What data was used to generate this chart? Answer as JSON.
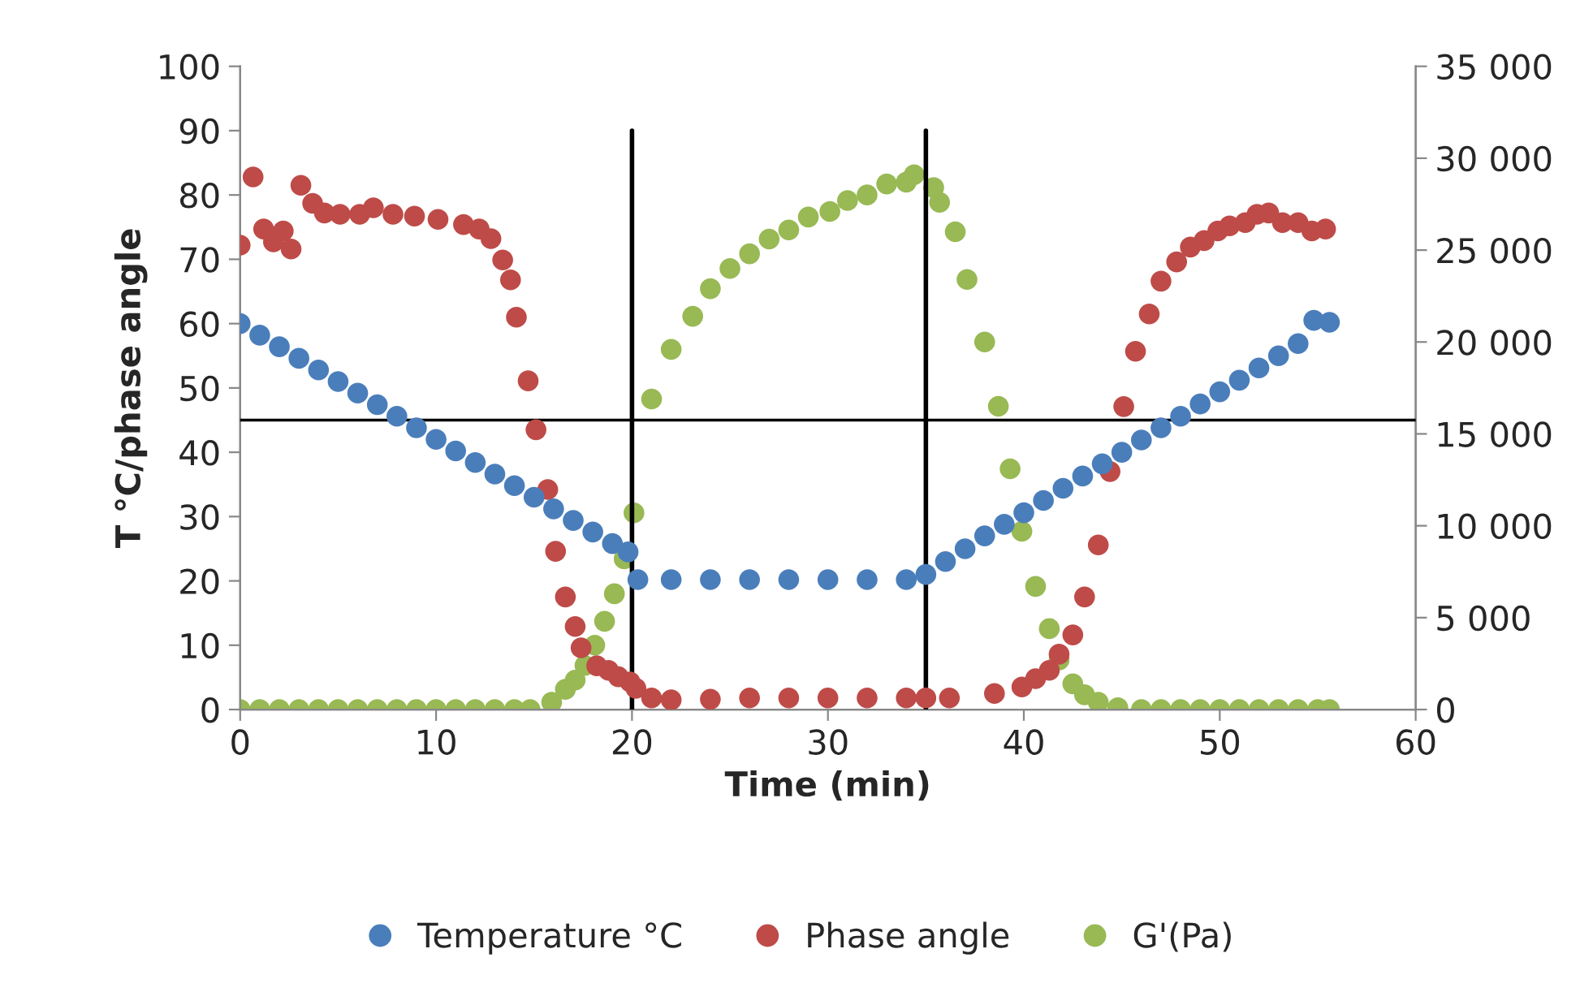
{
  "chart_data": {
    "type": "scatter",
    "xlabel": "Time (min)",
    "ylabel": "T °C/phase angle",
    "xlim": [
      0,
      60
    ],
    "xticks": [
      0,
      10,
      20,
      30,
      40,
      50,
      60
    ],
    "ylim": [
      0,
      100
    ],
    "yticks": [
      0,
      10,
      20,
      30,
      40,
      50,
      60,
      70,
      80,
      90,
      100
    ],
    "y2lim": [
      0,
      35000
    ],
    "y2ticks": [
      {
        "value": 0,
        "label": "0"
      },
      {
        "value": 5000,
        "label": "5 000"
      },
      {
        "value": 10000,
        "label": "10 000"
      },
      {
        "value": 15000,
        "label": "15 000"
      },
      {
        "value": 20000,
        "label": "20 000"
      },
      {
        "value": 25000,
        "label": "25 000"
      },
      {
        "value": 30000,
        "label": "30 000"
      },
      {
        "value": 35000,
        "label": "35 000"
      }
    ],
    "marker": "circle",
    "grid": false,
    "legend": "bottom",
    "ref_lines": [
      {
        "axis": "x",
        "value": 20,
        "color": "#000000"
      },
      {
        "axis": "x",
        "value": 35,
        "color": "#000000"
      },
      {
        "axis": "y",
        "value": 45,
        "color": "#000000"
      }
    ],
    "series": [
      {
        "name": "Temperature °C",
        "color": "#4a7ebb",
        "x": [
          0,
          1,
          2,
          3,
          4,
          5,
          6,
          7,
          8,
          9,
          10,
          11,
          12,
          13,
          14,
          15,
          16,
          17,
          18,
          19,
          19.8,
          20.3,
          22,
          24,
          26,
          28,
          30,
          32,
          34,
          35,
          36,
          37,
          38,
          39,
          40,
          41,
          42,
          43,
          44,
          45,
          46,
          47,
          48,
          49,
          50,
          51,
          52,
          53,
          54,
          54.8,
          55.6
        ],
        "values": [
          60,
          58.2,
          56.4,
          54.6,
          52.8,
          51,
          49.2,
          47.4,
          45.6,
          43.8,
          42,
          40.2,
          38.4,
          36.6,
          34.8,
          33,
          31.2,
          29.4,
          27.6,
          25.8,
          24.5,
          20.2,
          20.2,
          20.2,
          20.2,
          20.2,
          20.2,
          20.2,
          20.2,
          21,
          23,
          25,
          27,
          28.8,
          30.6,
          32.5,
          34.4,
          36.3,
          38.2,
          40,
          41.9,
          43.8,
          45.6,
          47.5,
          49.4,
          51.2,
          53.1,
          55,
          56.9,
          60.5,
          60.2
        ]
      },
      {
        "name": "Phase angle",
        "color": "#be4b48",
        "x": [
          0,
          0.66,
          1.2,
          1.7,
          2.2,
          2.6,
          3.1,
          3.7,
          4.3,
          5.1,
          6.1,
          6.8,
          7.8,
          8.9,
          10.1,
          11.4,
          12.2,
          12.8,
          13.4,
          13.8,
          14.1,
          14.7,
          15.1,
          15.7,
          16.1,
          16.6,
          17.1,
          17.4,
          18.2,
          18.8,
          19.3,
          19.9,
          20.2,
          21,
          22,
          24,
          26,
          28,
          30,
          32,
          34,
          35,
          36.2,
          38.5,
          39.9,
          40.6,
          41.3,
          41.8,
          42.5,
          43.1,
          43.8,
          44.4,
          45.1,
          45.7,
          46.4,
          47,
          47.8,
          48.5,
          49.2,
          49.9,
          50.5,
          51.3,
          51.9,
          52.5,
          53.2,
          54,
          54.7,
          55.4
        ],
        "values": [
          72.2,
          82.8,
          74.7,
          72.7,
          74.4,
          71.6,
          81.5,
          78.7,
          77.2,
          77,
          77,
          78,
          77,
          76.7,
          76.2,
          75.4,
          74.7,
          73.2,
          69.9,
          66.8,
          61,
          51.1,
          43.5,
          34.2,
          24.6,
          17.5,
          12.9,
          9.6,
          6.8,
          6.1,
          5.1,
          4.3,
          3.3,
          1.8,
          1.5,
          1.6,
          1.8,
          1.8,
          1.8,
          1.8,
          1.8,
          1.8,
          1.8,
          2.5,
          3.5,
          4.8,
          6.1,
          8.6,
          11.6,
          17.5,
          25.6,
          37,
          47.1,
          55.7,
          61.5,
          66.6,
          69.6,
          71.9,
          72.9,
          74.4,
          75.2,
          75.7,
          77,
          77.2,
          75.7,
          75.7,
          74.4,
          74.7
        ]
      },
      {
        "name": "G'(Pa)",
        "color": "#98b954",
        "axis": "y2",
        "x": [
          0,
          1,
          2,
          3,
          4,
          5,
          6,
          7,
          8,
          9,
          10,
          11,
          12,
          13,
          14,
          14.8,
          15.9,
          16.6,
          17.1,
          17.6,
          18.1,
          18.6,
          19.1,
          19.6,
          20.1,
          21,
          22,
          23.1,
          24,
          25,
          26,
          27,
          28,
          29,
          30.1,
          31,
          32,
          33,
          34,
          34.4,
          35.4,
          35.7,
          36.5,
          37.1,
          38,
          38.7,
          39.3,
          39.9,
          40.6,
          41.3,
          41.8,
          42.5,
          43.1,
          43.8,
          44.8,
          46,
          47,
          48,
          49,
          50,
          51,
          52,
          53,
          54,
          55,
          55.6
        ],
        "values": [
          0,
          0,
          0,
          0,
          0,
          0,
          0,
          0,
          0,
          0,
          0,
          0,
          0,
          0,
          0,
          0,
          400,
          1100,
          1600,
          2400,
          3500,
          4800,
          6300,
          8200,
          10700,
          16900,
          19600,
          21400,
          22900,
          24000,
          24800,
          25600,
          26100,
          26800,
          27100,
          27700,
          28000,
          28600,
          28700,
          29100,
          28400,
          27600,
          26000,
          23400,
          20000,
          16500,
          13100,
          9700,
          6700,
          4400,
          2700,
          1400,
          800,
          400,
          100,
          0,
          0,
          0,
          0,
          0,
          0,
          0,
          0,
          0,
          0,
          0
        ]
      }
    ]
  }
}
